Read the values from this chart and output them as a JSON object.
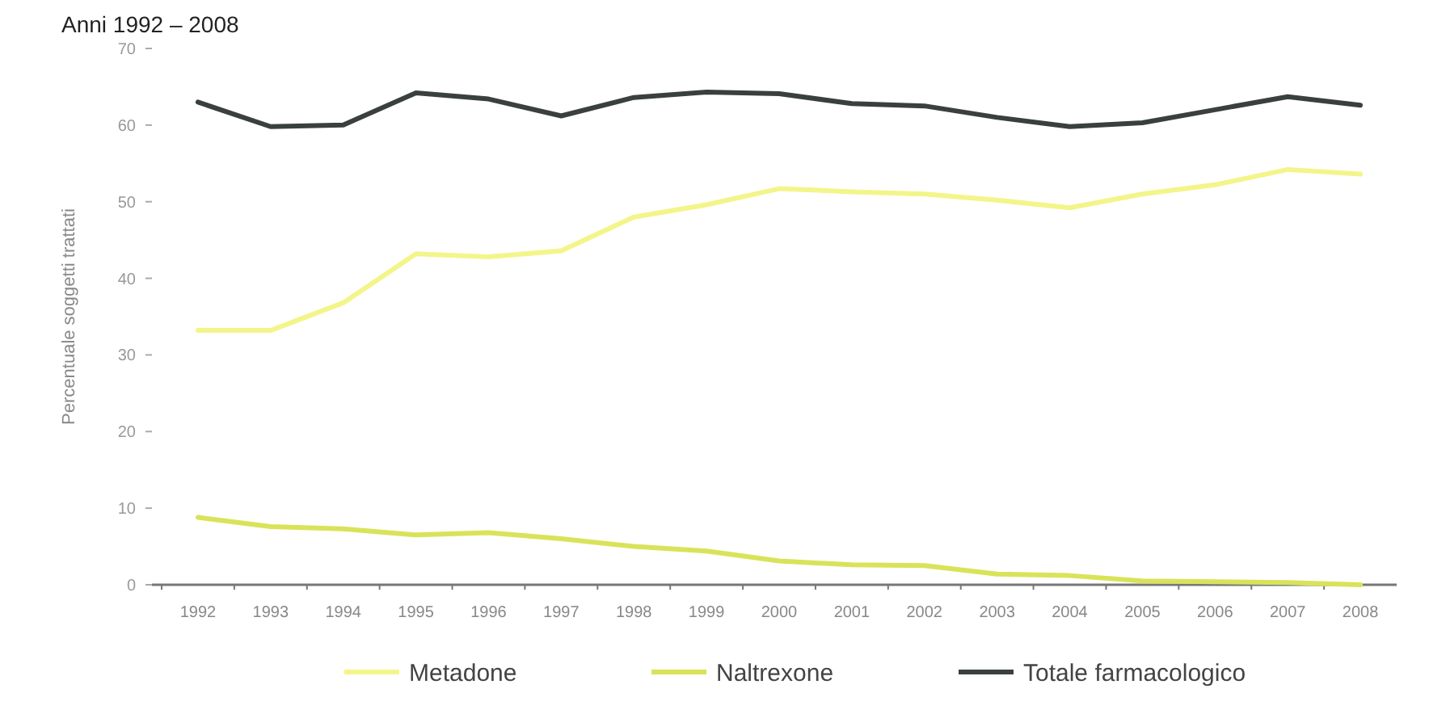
{
  "chart_data": {
    "type": "line",
    "title": "Anni 1992 – 2008",
    "ylabel": "Percentuale soggetti trattati",
    "categories": [
      "1992",
      "1993",
      "1994",
      "1995",
      "1996",
      "1997",
      "1998",
      "1999",
      "2000",
      "2001",
      "2002",
      "2003",
      "2004",
      "2005",
      "2006",
      "2007",
      "2008"
    ],
    "series": [
      {
        "name": "Metadone",
        "color": "#f3f58a",
        "values": [
          33.2,
          33.2,
          36.8,
          43.2,
          42.8,
          43.6,
          48,
          49.6,
          51.7,
          51.3,
          51,
          50.2,
          49.2,
          51,
          52.2,
          54.2,
          53.6
        ]
      },
      {
        "name": "Naltrexone",
        "color": "#d9e35a",
        "values": [
          8.8,
          7.6,
          7.3,
          6.5,
          6.8,
          6,
          5,
          4.4,
          3.1,
          2.6,
          2.5,
          1.4,
          1.2,
          0.5,
          0.4,
          0.3,
          0
        ]
      },
      {
        "name": "Totale farmacologico",
        "color": "#3a3f40",
        "values": [
          63,
          59.8,
          60,
          64.2,
          63.4,
          61.2,
          63.6,
          64.3,
          64.1,
          62.8,
          62.5,
          61,
          59.8,
          60.3,
          62,
          63.7,
          62.6
        ]
      }
    ],
    "ylim": [
      0,
      70
    ],
    "yticks": [
      0,
      10,
      20,
      30,
      40,
      50,
      60,
      70
    ],
    "grid": false,
    "legend": "bottom",
    "marker": "none",
    "line_style": "solid"
  }
}
